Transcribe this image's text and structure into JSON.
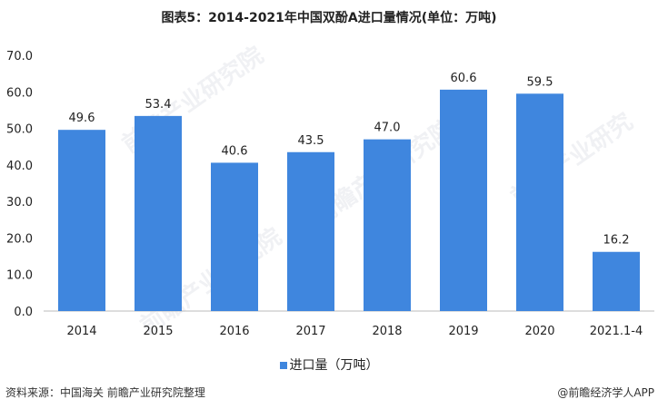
{
  "chart_data": {
    "type": "bar",
    "title": "图表5：2014-2021年中国双酚A进口量情况(单位：万吨)",
    "categories": [
      "2014",
      "2015",
      "2016",
      "2017",
      "2018",
      "2019",
      "2020",
      "2021.1-4"
    ],
    "series": [
      {
        "name": "进口量（万吨）",
        "values": [
          49.6,
          53.4,
          40.6,
          43.5,
          47.0,
          60.6,
          59.5,
          16.2
        ]
      }
    ],
    "data_labels": [
      "49.6",
      "53.4",
      "40.6",
      "43.5",
      "47.0",
      "60.6",
      "59.5",
      "16.2"
    ],
    "yticks": [
      "0.0",
      "10.0",
      "20.0",
      "30.0",
      "40.0",
      "50.0",
      "60.0",
      "70.0"
    ],
    "ylim": [
      0,
      70
    ],
    "grid": false,
    "legend_position": "bottom",
    "bar_color": "#3f86de"
  },
  "footer": {
    "source": "资料来源：中国海关 前瞻产业研究院整理",
    "credit": "@前瞻经济学人APP"
  },
  "watermark": "前瞻产业研究院"
}
